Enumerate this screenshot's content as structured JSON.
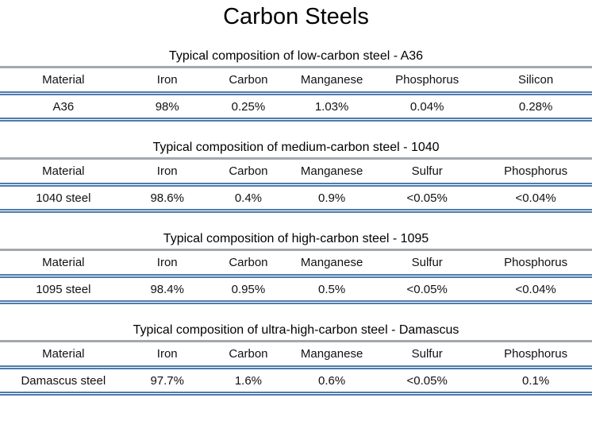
{
  "page": {
    "title": "Carbon Steels"
  },
  "colors": {
    "accent_line": "#4e7cac",
    "caption_rule": "#a3a8ad",
    "text": "#111111"
  },
  "tables": [
    {
      "caption": "Typical composition of low-carbon steel - A36",
      "headers": [
        "Material",
        "Iron",
        "Carbon",
        "Manganese",
        "Phosphorus",
        "Silicon"
      ],
      "rows": [
        [
          "A36",
          "98%",
          "0.25%",
          "1.03%",
          "0.04%",
          "0.28%"
        ]
      ]
    },
    {
      "caption": "Typical composition of medium-carbon steel - 1040",
      "headers": [
        "Material",
        "Iron",
        "Carbon",
        "Manganese",
        "Sulfur",
        "Phosphorus"
      ],
      "rows": [
        [
          "1040 steel",
          "98.6%",
          "0.4%",
          "0.9%",
          "<0.05%",
          "<0.04%"
        ]
      ]
    },
    {
      "caption": "Typical composition of high-carbon steel - 1095",
      "headers": [
        "Material",
        "Iron",
        "Carbon",
        "Manganese",
        "Sulfur",
        "Phosphorus"
      ],
      "rows": [
        [
          "1095 steel",
          "98.4%",
          "0.95%",
          "0.5%",
          "<0.05%",
          "<0.04%"
        ]
      ]
    },
    {
      "caption": "Typical composition of ultra-high-carbon steel - Damascus",
      "headers": [
        "Material",
        "Iron",
        "Carbon",
        "Manganese",
        "Sulfur",
        "Phosphorus"
      ],
      "rows": [
        [
          "Damascus steel",
          "97.7%",
          "1.6%",
          "0.6%",
          "<0.05%",
          "0.1%"
        ]
      ]
    }
  ]
}
